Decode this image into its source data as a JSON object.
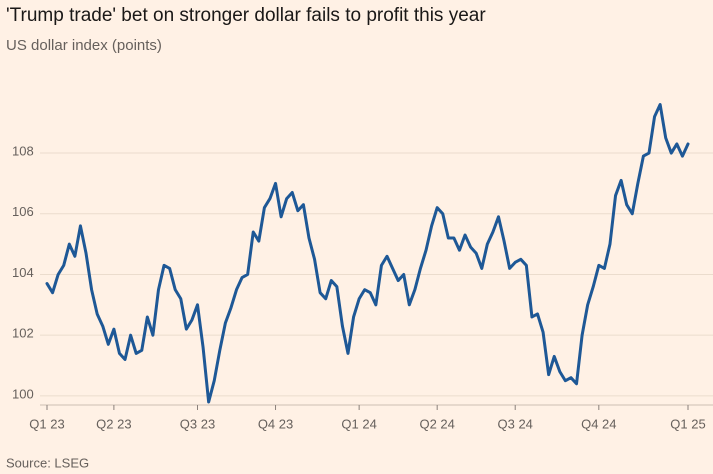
{
  "chart_data": {
    "type": "line",
    "title": "'Trump trade' bet on stronger dollar fails to profit this year",
    "subtitle": "US dollar index (points)",
    "source": "Source: LSEG",
    "categories": [
      "Q1 23",
      null,
      null,
      null,
      null,
      null,
      null,
      null,
      null,
      null,
      null,
      null,
      "Q2 23",
      null,
      null,
      null,
      null,
      null,
      null,
      null,
      null,
      null,
      null,
      null,
      null,
      null,
      null,
      "Q3 23",
      null,
      null,
      null,
      null,
      null,
      null,
      null,
      null,
      null,
      null,
      null,
      null,
      null,
      "Q4 23",
      null,
      null,
      null,
      null,
      null,
      null,
      null,
      null,
      null,
      null,
      null,
      null,
      null,
      null,
      "Q1 24",
      null,
      null,
      null,
      null,
      null,
      null,
      null,
      null,
      null,
      null,
      null,
      null,
      null,
      "Q2 24",
      null,
      null,
      null,
      null,
      null,
      null,
      null,
      null,
      null,
      null,
      null,
      null,
      null,
      "Q3 24",
      null,
      null,
      null,
      null,
      null,
      null,
      null,
      null,
      null,
      null,
      null,
      null,
      null,
      null,
      "Q4 24",
      null,
      null,
      null,
      null,
      null,
      null,
      null,
      null,
      null,
      null,
      null,
      null,
      null,
      null,
      null,
      "Q1 25"
    ],
    "series": [
      {
        "name": "US dollar index",
        "color": "#1e5896",
        "values": [
          103.7,
          103.4,
          104.0,
          104.3,
          105.0,
          104.6,
          105.6,
          104.7,
          103.5,
          102.7,
          102.3,
          101.7,
          102.2,
          101.4,
          101.2,
          102.0,
          101.4,
          101.5,
          102.6,
          102.0,
          103.5,
          104.3,
          104.2,
          103.5,
          103.2,
          102.2,
          102.5,
          103.0,
          101.6,
          99.8,
          100.5,
          101.5,
          102.4,
          102.9,
          103.5,
          103.9,
          104.0,
          105.4,
          105.1,
          106.2,
          106.5,
          107.0,
          105.9,
          106.5,
          106.7,
          106.1,
          106.3,
          105.2,
          104.5,
          103.4,
          103.2,
          103.8,
          103.6,
          102.3,
          101.4,
          102.6,
          103.2,
          103.5,
          103.4,
          103.0,
          104.3,
          104.6,
          104.2,
          103.8,
          104.0,
          103.0,
          103.5,
          104.2,
          104.8,
          105.6,
          106.2,
          106.0,
          105.2,
          105.2,
          104.8,
          105.3,
          104.9,
          104.7,
          104.2,
          105.0,
          105.4,
          105.9,
          105.1,
          104.2,
          104.4,
          104.5,
          104.3,
          102.6,
          102.7,
          102.1,
          100.7,
          101.3,
          100.8,
          100.5,
          100.6,
          100.4,
          102.0,
          103.0,
          103.6,
          104.3,
          104.2,
          105.0,
          106.6,
          107.1,
          106.3,
          106.0,
          107.0,
          107.9,
          108.0,
          109.2,
          109.6,
          108.5,
          108.0,
          108.3,
          107.9,
          108.3
        ]
      }
    ],
    "ylim": [
      99.7,
      111
    ],
    "yticks": [
      100,
      102,
      104,
      106,
      108
    ],
    "grid": true
  }
}
